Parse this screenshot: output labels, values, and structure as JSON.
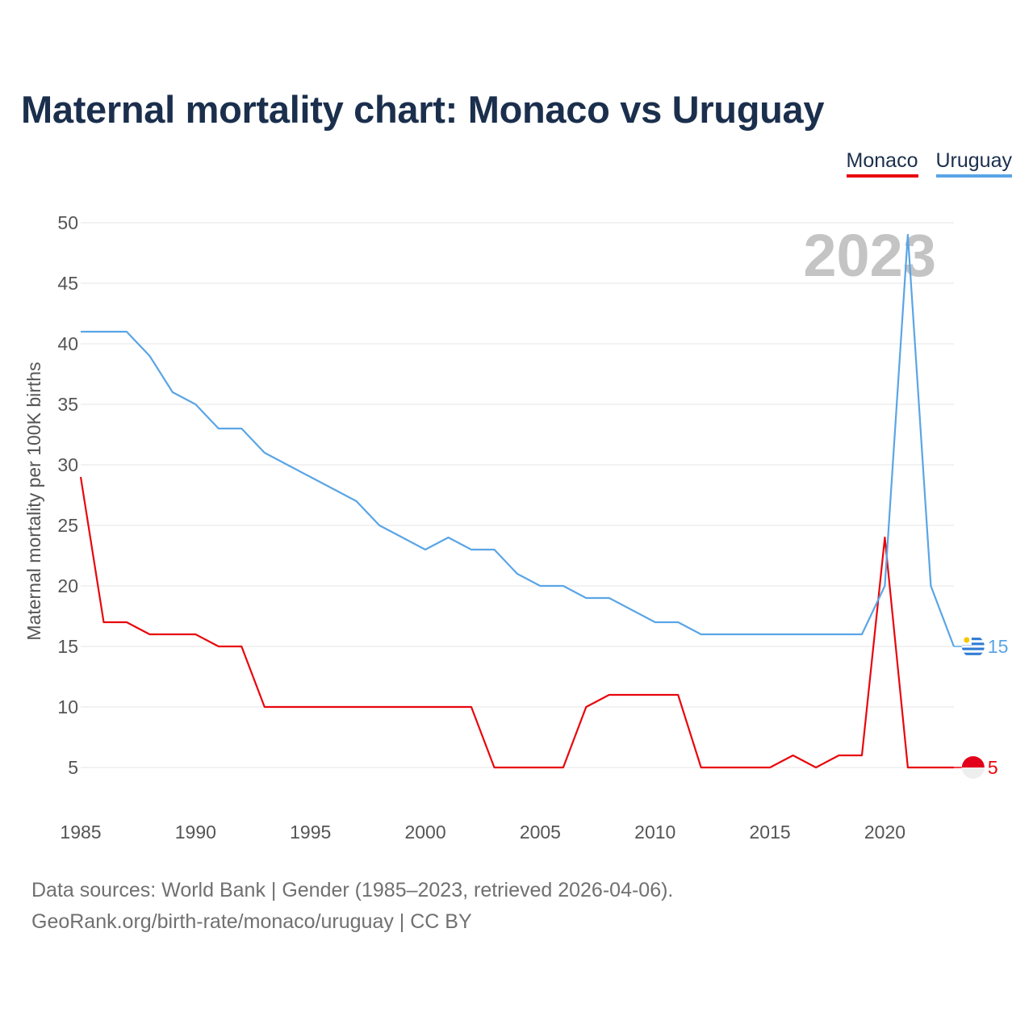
{
  "title": "Maternal mortality chart: Monaco vs Uruguay",
  "legend": [
    {
      "name": "Monaco",
      "color": "#e8060c"
    },
    {
      "name": "Uruguay",
      "color": "#5aa5e6"
    }
  ],
  "year_label": "2023",
  "footer": {
    "line1": "Data sources: World Bank | Gender (1985–2023, retrieved 2026-04-06).",
    "line2": "GeoRank.org/birth-rate/monaco/uruguay | CC BY"
  },
  "chart_data": {
    "type": "line",
    "title": "Maternal mortality chart: Monaco vs Uruguay",
    "xlabel": "",
    "ylabel": "Maternal mortality per 100K births",
    "xlim": [
      1985,
      2023
    ],
    "ylim": [
      2,
      50
    ],
    "yticks": [
      5,
      10,
      15,
      20,
      25,
      30,
      35,
      40,
      45,
      50
    ],
    "xticks": [
      1985,
      1990,
      1995,
      2000,
      2005,
      2010,
      2015,
      2020
    ],
    "x": [
      1985,
      1986,
      1987,
      1988,
      1989,
      1990,
      1991,
      1992,
      1993,
      1994,
      1995,
      1996,
      1997,
      1998,
      1999,
      2000,
      2001,
      2002,
      2003,
      2004,
      2005,
      2006,
      2007,
      2008,
      2009,
      2010,
      2011,
      2012,
      2013,
      2014,
      2015,
      2016,
      2017,
      2018,
      2019,
      2020,
      2021,
      2022,
      2023
    ],
    "series": [
      {
        "name": "Monaco",
        "color": "#e8060c",
        "end_label": "5",
        "values": [
          29,
          17,
          17,
          16,
          16,
          16,
          15,
          15,
          10,
          10,
          10,
          10,
          10,
          10,
          10,
          10,
          10,
          10,
          5,
          5,
          5,
          5,
          10,
          11,
          11,
          11,
          11,
          5,
          5,
          5,
          5,
          6,
          5,
          6,
          6,
          24,
          5,
          5,
          5
        ]
      },
      {
        "name": "Uruguay",
        "color": "#5aa5e6",
        "end_label": "15",
        "values": [
          41,
          41,
          41,
          39,
          36,
          35,
          33,
          33,
          31,
          30,
          29,
          28,
          27,
          25,
          24,
          23,
          24,
          23,
          23,
          21,
          20,
          20,
          19,
          19,
          18,
          17,
          17,
          16,
          16,
          16,
          16,
          16,
          16,
          16,
          16,
          20,
          49,
          20,
          15
        ]
      }
    ]
  }
}
